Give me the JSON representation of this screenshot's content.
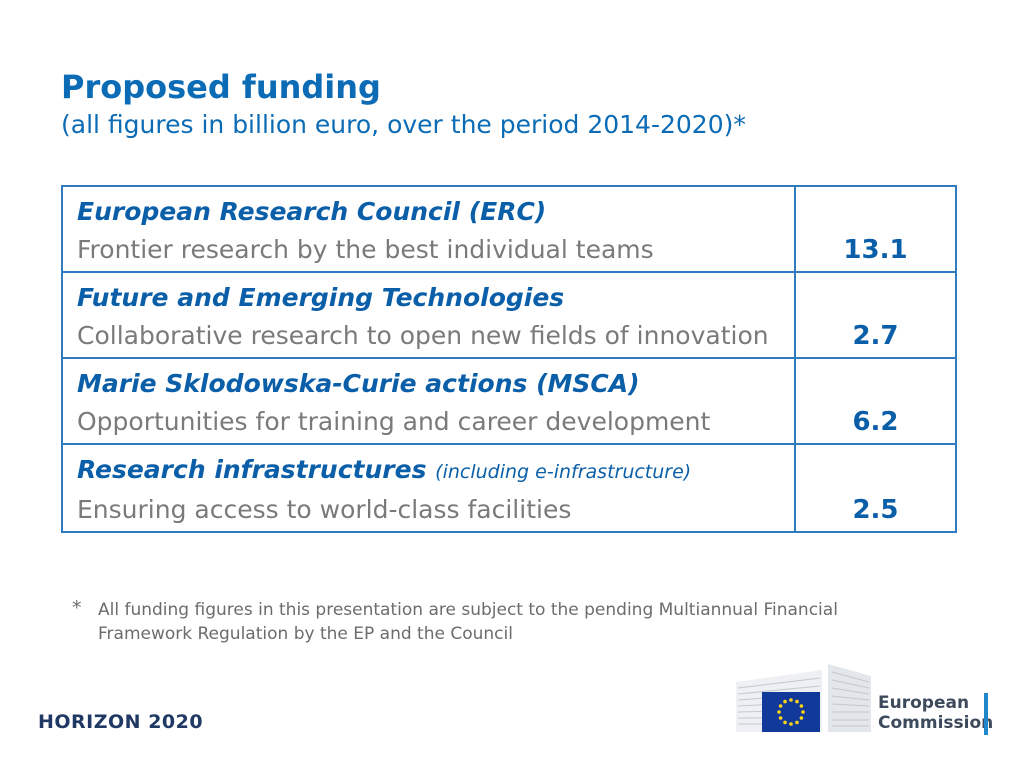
{
  "header": {
    "title": "Proposed funding",
    "subtitle": "(all figures in billion euro, over the period 2014-2020)*"
  },
  "table": {
    "rows": [
      {
        "title": "European Research Council (ERC)",
        "note": "",
        "description": "Frontier research by the best individual teams",
        "value": "13.1"
      },
      {
        "title": "Future and Emerging Technologies",
        "note": "",
        "description": "Collaborative research to open new fields of innovation",
        "value": "2.7"
      },
      {
        "title": "Marie Sklodowska-Curie actions (MSCA)",
        "note": "",
        "description": "Opportunities for training and career development",
        "value": "6.2"
      },
      {
        "title": "Research infrastructures",
        "note": "(including e-infrastructure)",
        "description": "Ensuring access to world-class facilities",
        "value": "2.5"
      }
    ]
  },
  "footnote": {
    "marker": "*",
    "text": "All funding figures in this presentation are subject to the pending Multiannual Financial Framework Regulation by the EP and the Council"
  },
  "footer": {
    "program": "HORIZON 2020",
    "logo_line1": "European",
    "logo_line2": "Commission"
  },
  "colors": {
    "accent": "#0b6bb5",
    "border": "#2f7bbd",
    "eu_blue": "#10399a",
    "eu_star": "#ffd617"
  }
}
